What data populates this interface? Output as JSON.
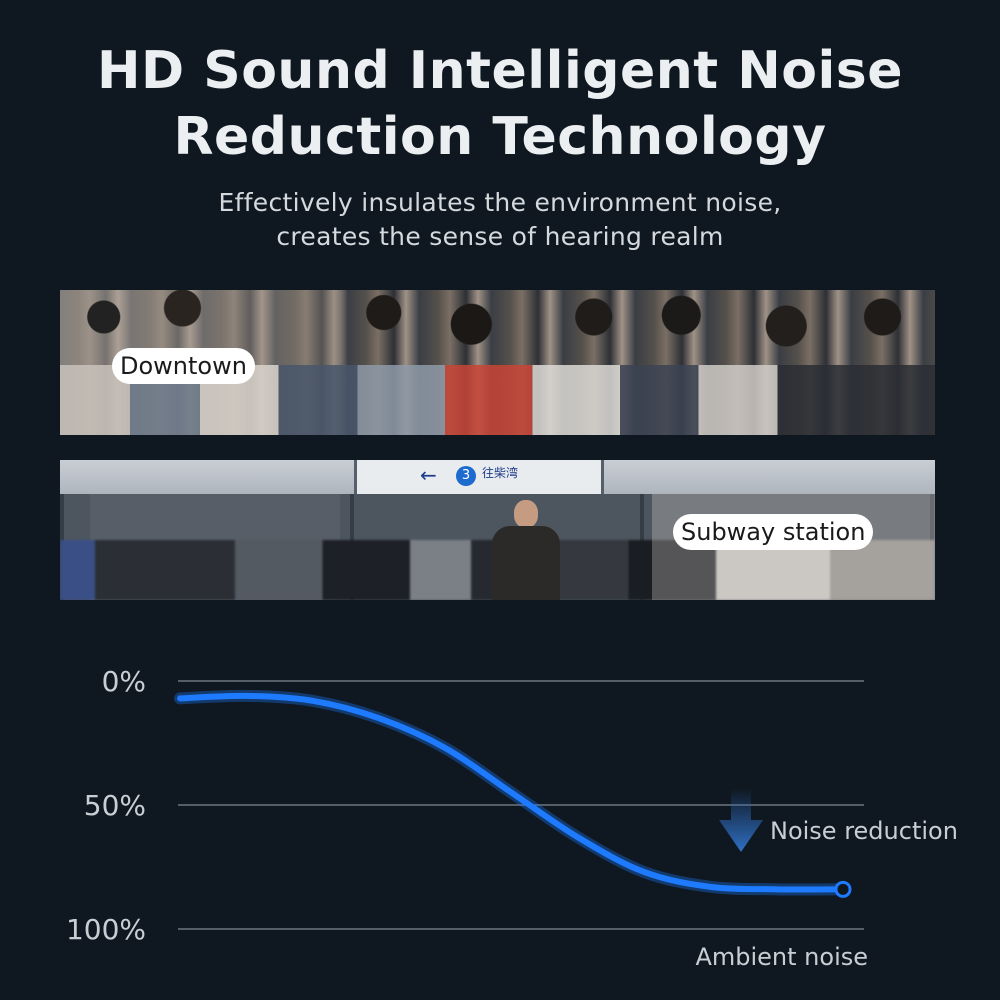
{
  "headline": {
    "line1": "HD Sound  Intelligent Noise",
    "line2": "Reduction Technology"
  },
  "subtitle": {
    "line1": "Effectively insulates the environment noise,",
    "line2": "creates the sense of hearing realm"
  },
  "photos": {
    "downtown_label": "Downtown",
    "subway_label": "Subway station",
    "subway_sign_number": "3",
    "subway_sign_text": "往柴湾"
  },
  "chart_data": {
    "type": "line",
    "y_tick_labels": [
      "0%",
      "50%",
      "100%"
    ],
    "ylim": [
      0,
      100
    ],
    "y_inverted": true,
    "grid": true,
    "x": [
      0,
      10,
      20,
      30,
      40,
      50,
      60,
      70,
      80,
      90,
      100
    ],
    "series": [
      {
        "values": [
          7,
          6,
          8,
          15,
          27,
          45,
          63,
          77,
          83,
          84,
          84
        ],
        "color": "#1e7bff"
      }
    ],
    "annotations": {
      "arrow_label": "Noise reduction",
      "baseline_label": "Ambient noise"
    },
    "colors": {
      "curve": "#1e7bff",
      "arrow": "#2f6fc4",
      "grid": "#6b7580"
    }
  }
}
